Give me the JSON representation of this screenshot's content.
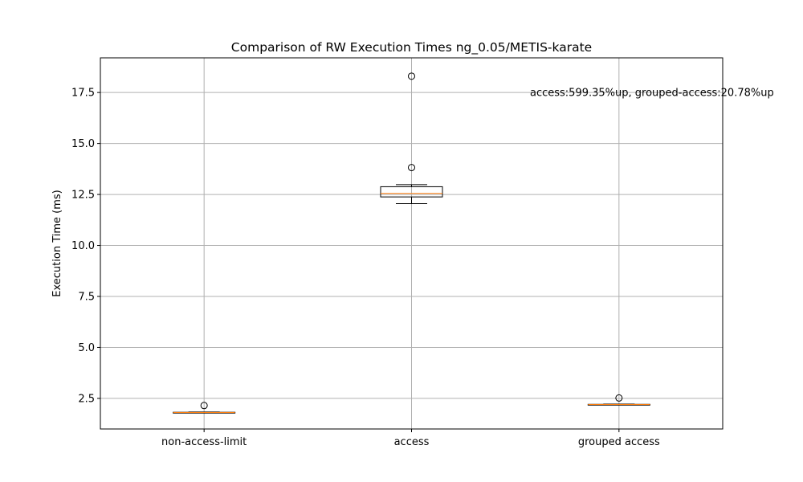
{
  "chart_data": {
    "type": "boxplot",
    "title": "Comparison of RW Execution Times ng_0.05/METIS-karate",
    "xlabel": "",
    "ylabel": "Execution Time (ms)",
    "ylim": [
      1.0,
      19.2
    ],
    "yticks": [
      2.5,
      5.0,
      7.5,
      10.0,
      12.5,
      15.0,
      17.5
    ],
    "ytick_labels": [
      "2.5",
      "5.0",
      "7.5",
      "10.0",
      "12.5",
      "15.0",
      "17.5"
    ],
    "grid": true,
    "categories": [
      "non-access-limit",
      "access",
      "grouped access"
    ],
    "boxes": [
      {
        "label": "non-access-limit",
        "whisker_low": 1.79,
        "q1": 1.8,
        "median": 1.81,
        "q3": 1.82,
        "whisker_high": 1.83,
        "outliers": [
          2.15
        ]
      },
      {
        "label": "access",
        "whisker_low": 12.05,
        "q1": 12.38,
        "median": 12.55,
        "q3": 12.88,
        "whisker_high": 12.98,
        "outliers": [
          13.82,
          18.3
        ]
      },
      {
        "label": "grouped access",
        "whisker_low": 2.18,
        "q1": 2.19,
        "median": 2.2,
        "q3": 2.21,
        "whisker_high": 2.22,
        "outliers": [
          2.52
        ]
      }
    ],
    "annotation": {
      "text": "access:599.35%up, grouped-access:20.78%up",
      "x": 2.5,
      "y": 17.5
    },
    "colors": {
      "box": "#000000",
      "median": "#ff7f0e",
      "grid": "#b0b0b0"
    }
  }
}
